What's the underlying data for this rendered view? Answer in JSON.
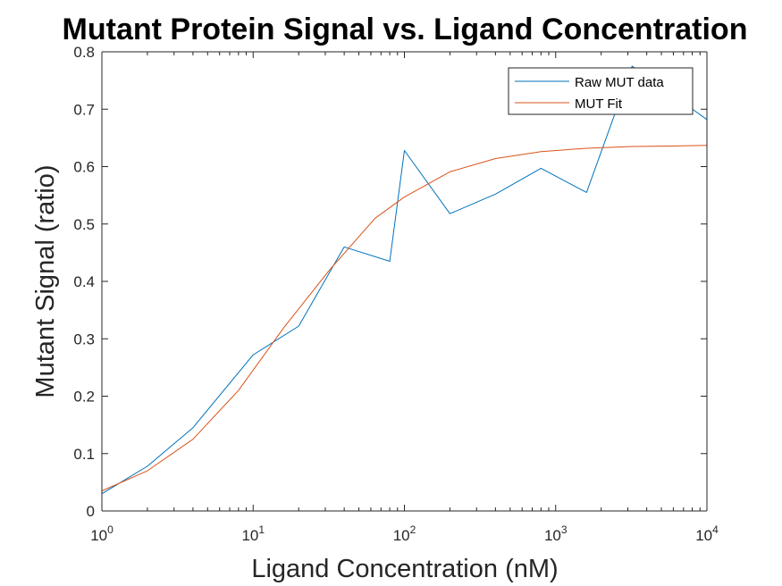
{
  "chart_data": {
    "type": "line",
    "title": "Mutant Protein Signal vs. Ligand Concentration",
    "xlabel": "Ligand Concentration (nM)",
    "ylabel": "Mutant Signal (ratio)",
    "xscale": "log",
    "xlim": [
      1,
      10000
    ],
    "ylim": [
      0,
      0.8
    ],
    "x_ticks": [
      {
        "base": "10",
        "exp": "0",
        "value": 1
      },
      {
        "base": "10",
        "exp": "1",
        "value": 10
      },
      {
        "base": "10",
        "exp": "2",
        "value": 100
      },
      {
        "base": "10",
        "exp": "3",
        "value": 1000
      },
      {
        "base": "10",
        "exp": "4",
        "value": 10000
      }
    ],
    "y_ticks": [
      "0",
      "0.1",
      "0.2",
      "0.3",
      "0.4",
      "0.5",
      "0.6",
      "0.7",
      "0.8"
    ],
    "grid": false,
    "legend_position": "top-right",
    "series": [
      {
        "name": "Raw MUT data",
        "color": "#0072BD",
        "x": [
          1,
          2,
          4,
          10,
          20,
          40,
          80,
          100,
          200,
          400,
          800,
          1600,
          3200,
          10000
        ],
        "y": [
          0.03,
          0.078,
          0.145,
          0.272,
          0.322,
          0.46,
          0.435,
          0.628,
          0.518,
          0.552,
          0.597,
          0.555,
          0.775,
          0.682
        ]
      },
      {
        "name": "MUT Fit",
        "color": "#D95319",
        "x": [
          1,
          2,
          4,
          8,
          16,
          32,
          64,
          100,
          200,
          400,
          800,
          1600,
          3200,
          6400,
          10000
        ],
        "y": [
          0.035,
          0.07,
          0.125,
          0.21,
          0.32,
          0.42,
          0.51,
          0.547,
          0.591,
          0.614,
          0.626,
          0.632,
          0.635,
          0.636,
          0.637
        ]
      }
    ]
  }
}
